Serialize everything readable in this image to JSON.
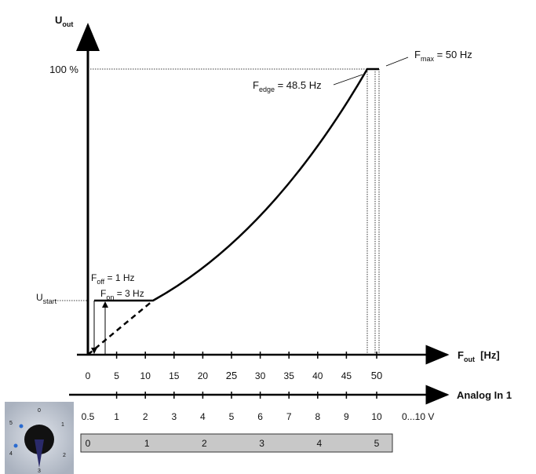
{
  "y_axis": {
    "main": "U",
    "sub": "out"
  },
  "label_100": "100 %",
  "f_max": {
    "main": "F",
    "sub": "max",
    "rest": " = 50 Hz"
  },
  "f_edge": {
    "main": "F",
    "sub": "edge",
    "rest": " = 48.5 Hz"
  },
  "f_off": {
    "main": "F",
    "sub": "off",
    "rest": " = 1 Hz"
  },
  "f_on": {
    "main": "F",
    "sub": "on",
    "rest": " = 3 Hz"
  },
  "u_start": {
    "main": "U",
    "sub": "start"
  },
  "x_axis": {
    "main": "F",
    "sub": "out",
    "rest": "  [Hz]"
  },
  "freq_ticks": [
    "0",
    "5",
    "10",
    "15",
    "20",
    "25",
    "30",
    "35",
    "40",
    "45",
    "50"
  ],
  "analog_axis": {
    "title": "Analog In 1",
    "range": "0...10 V",
    "ticks": [
      "0.5",
      "1",
      "2",
      "3",
      "4",
      "5",
      "6",
      "7",
      "8",
      "9",
      "10"
    ]
  },
  "knob_bar": [
    "0",
    "1",
    "2",
    "3",
    "4",
    "5"
  ],
  "knob_dial": [
    "0",
    "1",
    "2",
    "3",
    "4",
    "5"
  ]
}
